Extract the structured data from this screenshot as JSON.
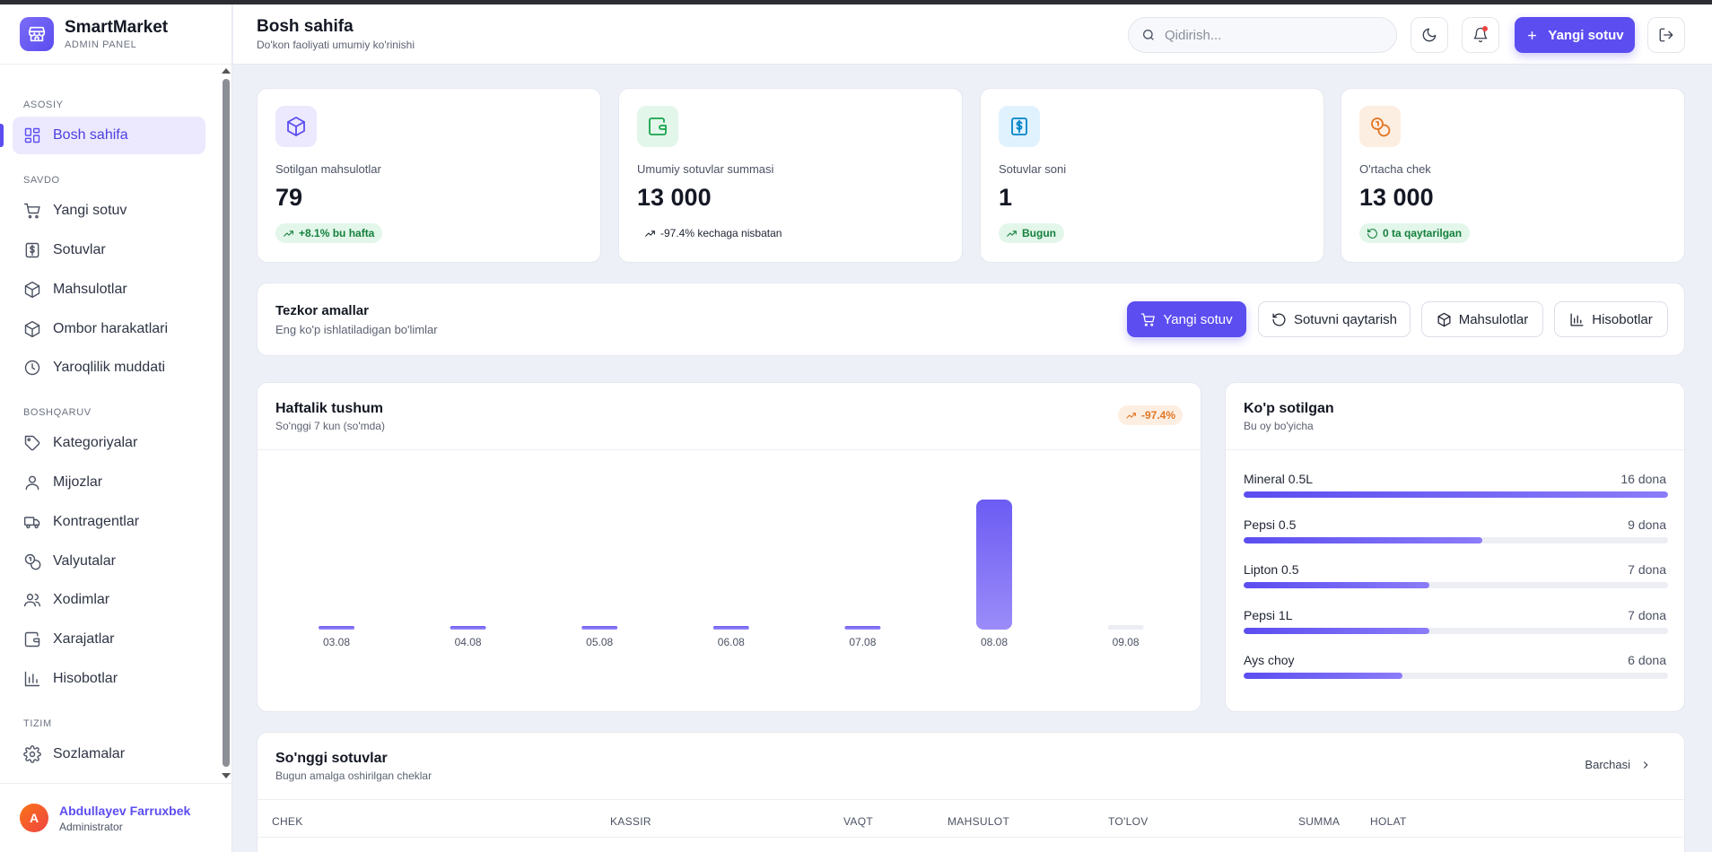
{
  "brand": {
    "name": "SmartMarket",
    "subtitle": "ADMIN PANEL"
  },
  "sidebar": {
    "sections": [
      {
        "title": "ASOSIY"
      },
      {
        "title": "SAVDO"
      },
      {
        "title": "BOSHQARUV"
      },
      {
        "title": "TIZIM"
      }
    ],
    "items": [
      {
        "label": "Bosh sahifa",
        "icon": "dashboard-icon",
        "active": true
      },
      {
        "label": "Yangi sotuv",
        "icon": "cart-icon"
      },
      {
        "label": "Sotuvlar",
        "icon": "dollar-receipt-icon"
      },
      {
        "label": "Mahsulotlar",
        "icon": "box-icon"
      },
      {
        "label": "Ombor harakatlari",
        "icon": "box-icon"
      },
      {
        "label": "Yaroqlilik muddati",
        "icon": "clock-icon"
      },
      {
        "label": "Kategoriyalar",
        "icon": "tag-icon"
      },
      {
        "label": "Mijozlar",
        "icon": "user-icon"
      },
      {
        "label": "Kontragentlar",
        "icon": "truck-icon"
      },
      {
        "label": "Valyutalar",
        "icon": "coins-icon"
      },
      {
        "label": "Xodimlar",
        "icon": "users-icon"
      },
      {
        "label": "Xarajatlar",
        "icon": "wallet-icon"
      },
      {
        "label": "Hisobotlar",
        "icon": "bar-chart-icon"
      },
      {
        "label": "Sozlamalar",
        "icon": "gear-icon"
      }
    ]
  },
  "user": {
    "initial": "A",
    "name": "Abdullayev Farruxbek",
    "role": "Administrator"
  },
  "header": {
    "title": "Bosh sahifa",
    "subtitle": "Do'kon faoliyati umumiy ko'rinishi",
    "search_placeholder": "Qidirish...",
    "new_sale_label": "Yangi sotuv"
  },
  "stats": [
    {
      "label": "Sotilgan mahsulotlar",
      "value": "79",
      "badge": "+8.1% bu hafta",
      "icon": "box-icon",
      "color": "#5b4df0"
    },
    {
      "label": "Umumiy sotuvlar summasi",
      "value": "13 000",
      "badge": "-97.4% kechaga nisbatan",
      "icon": "wallet-icon",
      "color": "#16a34a"
    },
    {
      "label": "Sotuvlar soni",
      "value": "1",
      "badge": "Bugun",
      "icon": "dollar-receipt-icon",
      "color": "#0ea5e9"
    },
    {
      "label": "O'rtacha chek",
      "value": "13 000",
      "badge": "0 ta qaytarilgan",
      "icon": "coins-icon",
      "color": "#e07624"
    }
  ],
  "quick_actions": {
    "title": "Tezkor amallar",
    "subtitle": "Eng ko'p ishlatiladigan bo'limlar",
    "buttons": [
      {
        "label": "Yangi sotuv",
        "icon": "cart-icon"
      },
      {
        "label": "Sotuvni qaytarish",
        "icon": "undo-icon"
      },
      {
        "label": "Mahsulotlar",
        "icon": "box-icon"
      },
      {
        "label": "Hisobotlar",
        "icon": "bar-chart-icon"
      }
    ]
  },
  "weekly_chart": {
    "title": "Haftalik tushum",
    "subtitle": "So'nggi 7 kun (so'mda)",
    "trend": "-97.4%"
  },
  "chart_data": {
    "type": "bar",
    "categories": [
      "03.08",
      "04.08",
      "05.08",
      "06.08",
      "07.08",
      "08.08",
      "09.08"
    ],
    "values": [
      1500,
      1500,
      1500,
      1500,
      4500,
      500000,
      0
    ],
    "ylim": [
      0,
      500000
    ],
    "grid": false
  },
  "top_selling": {
    "title": "Ko'p sotilgan",
    "subtitle": "Bu oy bo'yicha",
    "items": [
      {
        "name": "Mineral 0.5L",
        "qty": "16 dona",
        "value": 16
      },
      {
        "name": "Pepsi 0.5",
        "qty": "9 dona",
        "value": 9
      },
      {
        "name": "Lipton 0.5",
        "qty": "7 dona",
        "value": 7
      },
      {
        "name": "Pepsi 1L",
        "qty": "7 dona",
        "value": 7
      },
      {
        "name": "Ays choy",
        "qty": "6 dona",
        "value": 6
      }
    ],
    "max": 16
  },
  "recent_sales": {
    "title": "So'nggi sotuvlar",
    "subtitle": "Bugun amalga oshirilgan cheklar",
    "view_all": "Barchasi",
    "columns": [
      "CHEK",
      "KASSIR",
      "VAQT",
      "MAHSULOT",
      "TO'LOV",
      "SUMMA",
      "HOLAT"
    ]
  }
}
